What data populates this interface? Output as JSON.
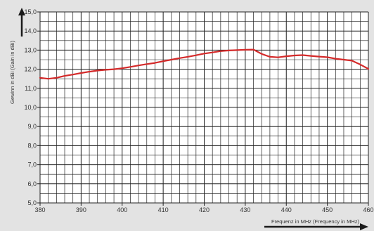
{
  "colors": {
    "background": "#e3e3e3",
    "plot_background": "#ffffff",
    "grid": "#222222",
    "line": "#d42a2a",
    "axis_arrow": "#1a1a1a",
    "text": "#333333"
  },
  "chart_data": {
    "type": "line",
    "title": "",
    "xlabel": "Frequenz in MHz (Frequency in MHz)",
    "ylabel": "Gewinn in dBi (Gain in dBi)",
    "xlim": [
      380,
      460
    ],
    "ylim": [
      5,
      15
    ],
    "x_ticks": [
      380,
      390,
      400,
      410,
      420,
      430,
      440,
      450,
      460
    ],
    "x_tick_labels": [
      "380",
      "390",
      "400",
      "410",
      "420",
      "430",
      "440",
      "450",
      "460"
    ],
    "y_ticks": [
      5,
      6,
      7,
      8,
      9,
      10,
      11,
      12,
      13,
      14,
      15
    ],
    "y_tick_labels": [
      "5,0",
      "6,0",
      "7,0",
      "8,0",
      "9,0",
      "10,0",
      "11,0",
      "12,0",
      "13,0",
      "14,0",
      "15,0"
    ],
    "grid": true,
    "series": [
      {
        "x": [
          380,
          382,
          384,
          386,
          388,
          390,
          392,
          394,
          396,
          398,
          400,
          402,
          404,
          406,
          408,
          410,
          412,
          414,
          416,
          418,
          420,
          422,
          424,
          426,
          428,
          430,
          432,
          434,
          436,
          438,
          440,
          442,
          444,
          446,
          448,
          450,
          452,
          454,
          456,
          458,
          460
        ],
        "y": [
          11.55,
          11.5,
          11.55,
          11.65,
          11.72,
          11.8,
          11.87,
          11.93,
          11.97,
          12.0,
          12.05,
          12.12,
          12.2,
          12.27,
          12.33,
          12.42,
          12.5,
          12.58,
          12.65,
          12.73,
          12.82,
          12.88,
          12.95,
          12.98,
          13.0,
          13.02,
          13.03,
          12.8,
          12.65,
          12.62,
          12.68,
          12.72,
          12.74,
          12.7,
          12.66,
          12.63,
          12.55,
          12.5,
          12.45,
          12.25,
          12.02
        ]
      }
    ]
  }
}
